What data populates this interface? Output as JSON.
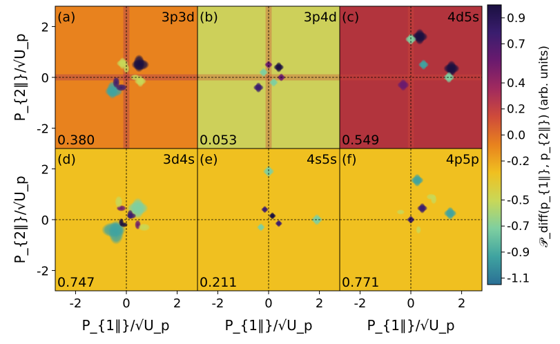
{
  "chart_data": {
    "type": "heatmap",
    "xlabel": "P_{1∥}/√U_p",
    "ylabel": "P_{2∥}/√U_p",
    "xlim": [
      -2.8,
      2.8
    ],
    "ylim": [
      -2.8,
      2.8
    ],
    "x_ticks": [
      -2,
      0,
      2
    ],
    "y_ticks": [
      2,
      0,
      -2
    ],
    "x_tick_labels": [
      "-2",
      "0",
      "2"
    ],
    "y_tick_labels": [
      "2",
      "0",
      "-2"
    ],
    "reference_lines": "dashed lines at x = 0 and y = 0",
    "colorbar": {
      "label": "𝒫_diff(p_{1∥}, p_{2∥}) (arb. units)",
      "range": [
        -1.15,
        1.0
      ],
      "ticks": [
        0.9,
        0.7,
        0.4,
        0.2,
        0.0,
        -0.2,
        -0.5,
        -0.7,
        -0.9,
        -1.1
      ],
      "tick_labels": [
        "0.9",
        "0.7",
        "0.4",
        "0.2",
        "0.0",
        "-0.2",
        "-0.5",
        "-0.7",
        "-0.9",
        "-1.1"
      ],
      "colors": [
        "#1a1040",
        "#3a1d6e",
        "#6a1a6e",
        "#a12a5e",
        "#cf4b3a",
        "#e8821e",
        "#f0c020",
        "#c8d858",
        "#7ecfa0",
        "#3fa3a0",
        "#2a6f95"
      ],
      "colormap": "diverging dark-purple → red → orange → yellow → teal → navy"
    },
    "panels": [
      {
        "id": "(a)",
        "channel": "3p3d",
        "value": "0.380",
        "background": "#e8821e",
        "features": [
          {
            "x": 0.55,
            "y": 0.5,
            "v": 1.0,
            "s": 0.22
          },
          {
            "x": -0.5,
            "y": -0.55,
            "v": -0.9,
            "s": 0.22
          },
          {
            "x": 0.55,
            "y": -0.15,
            "v": -0.5,
            "s": 0.15
          },
          {
            "x": -0.15,
            "y": 0.55,
            "v": -0.5,
            "s": 0.15
          },
          {
            "x": -0.2,
            "y": -0.4,
            "v": 0.7,
            "s": 0.14
          },
          {
            "x": 0.35,
            "y": 0.0,
            "v": -0.4,
            "s": 0.12
          }
        ]
      },
      {
        "id": "(b)",
        "channel": "3p4d",
        "value": "0.053",
        "background": "#cdd05a",
        "features": [
          {
            "x": 0.4,
            "y": 0.4,
            "v": 0.9,
            "s": 0.13
          },
          {
            "x": -0.4,
            "y": -0.4,
            "v": 0.8,
            "s": 0.13
          },
          {
            "x": 0.2,
            "y": -0.2,
            "v": -0.8,
            "s": 0.11
          },
          {
            "x": -0.2,
            "y": 0.2,
            "v": -0.8,
            "s": 0.11
          },
          {
            "x": 0.5,
            "y": 0.0,
            "v": 0.6,
            "s": 0.1
          },
          {
            "x": 0.0,
            "y": 0.5,
            "v": 0.6,
            "s": 0.1
          }
        ]
      },
      {
        "id": "(c)",
        "channel": "4d5s",
        "value": "0.549",
        "background": "#b2343d",
        "features": [
          {
            "x": 0.35,
            "y": 1.6,
            "v": 0.9,
            "s": 0.2
          },
          {
            "x": 1.6,
            "y": 0.35,
            "v": 0.9,
            "s": 0.2
          },
          {
            "x": 0.5,
            "y": 0.5,
            "v": -1.0,
            "s": 0.13
          },
          {
            "x": 1.5,
            "y": 0.0,
            "v": -0.7,
            "s": 0.14
          },
          {
            "x": 0.0,
            "y": 1.5,
            "v": -0.7,
            "s": 0.14
          },
          {
            "x": -0.3,
            "y": -0.3,
            "v": 0.6,
            "s": 0.15
          }
        ]
      },
      {
        "id": "(d)",
        "channel": "3d4s",
        "value": "0.747",
        "background": "#f0c020",
        "features": [
          {
            "x": -0.5,
            "y": -0.4,
            "v": -0.9,
            "s": 0.3
          },
          {
            "x": 0.45,
            "y": 0.45,
            "v": -0.8,
            "s": 0.26
          },
          {
            "x": 0.2,
            "y": 0.15,
            "v": 0.8,
            "s": 0.12
          },
          {
            "x": -0.2,
            "y": 0.45,
            "v": 0.6,
            "s": 0.12
          },
          {
            "x": 0.7,
            "y": -0.3,
            "v": -0.6,
            "s": 0.15
          },
          {
            "x": -0.1,
            "y": -0.2,
            "v": 0.9,
            "s": 0.1
          }
        ]
      },
      {
        "id": "(e)",
        "channel": "4s5s",
        "value": "0.211",
        "background": "#f0c020",
        "features": [
          {
            "x": 0.0,
            "y": 1.9,
            "v": -0.8,
            "s": 0.14
          },
          {
            "x": 1.9,
            "y": 0.0,
            "v": -0.8,
            "s": 0.14
          },
          {
            "x": 0.15,
            "y": 0.15,
            "v": 1.0,
            "s": 0.09
          },
          {
            "x": -0.3,
            "y": -0.3,
            "v": -0.7,
            "s": 0.1
          },
          {
            "x": 0.4,
            "y": -0.15,
            "v": 0.7,
            "s": 0.09
          },
          {
            "x": -0.15,
            "y": 0.4,
            "v": 0.7,
            "s": 0.09
          }
        ]
      },
      {
        "id": "(f)",
        "channel": "4p5p",
        "value": "0.771",
        "background": "#f0c020",
        "features": [
          {
            "x": 0.25,
            "y": 1.55,
            "v": -1.0,
            "s": 0.16
          },
          {
            "x": 1.55,
            "y": 0.25,
            "v": -1.0,
            "s": 0.16
          },
          {
            "x": 0.45,
            "y": 0.45,
            "v": 0.8,
            "s": 0.13
          },
          {
            "x": 0.0,
            "y": 0.0,
            "v": 0.7,
            "s": 0.1
          },
          {
            "x": 0.8,
            "y": 0.9,
            "v": -0.5,
            "s": 0.12
          },
          {
            "x": -0.4,
            "y": 0.3,
            "v": -0.5,
            "s": 0.1
          }
        ]
      }
    ]
  }
}
